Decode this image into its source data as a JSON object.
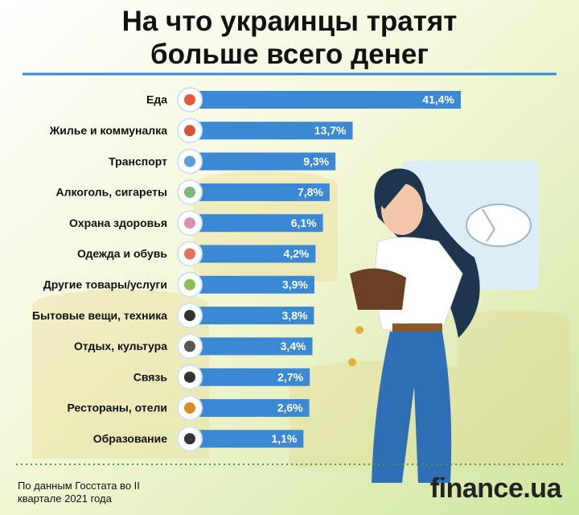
{
  "chart_data": {
    "type": "bar",
    "orientation": "horizontal",
    "title": "На что украинцы тратят больше всего денег",
    "categories": [
      "Еда",
      "Жилье и коммуналка",
      "Транспорт",
      "Алкоголь, сигареты",
      "Охрана здоровья",
      "Одежда и обувь",
      "Другие товары/услуги",
      "Бытовые вещи, техника",
      "Отдых, культура",
      "Связь",
      "Рестораны, отели",
      "Образование"
    ],
    "values": [
      41.4,
      13.7,
      9.3,
      7.8,
      6.1,
      4.2,
      3.9,
      3.8,
      3.4,
      2.7,
      2.6,
      1.1
    ],
    "value_labels": [
      "41,4%",
      "13,7%",
      "9,3%",
      "7,8%",
      "6,1%",
      "4,2%",
      "3,9%",
      "3,8%",
      "3,4%",
      "2,7%",
      "2,6%",
      "1,1%"
    ],
    "color": "#3b88d4",
    "source": "По данным Госстата во II квартале 2021 года",
    "logo": "finance.ua"
  }
}
